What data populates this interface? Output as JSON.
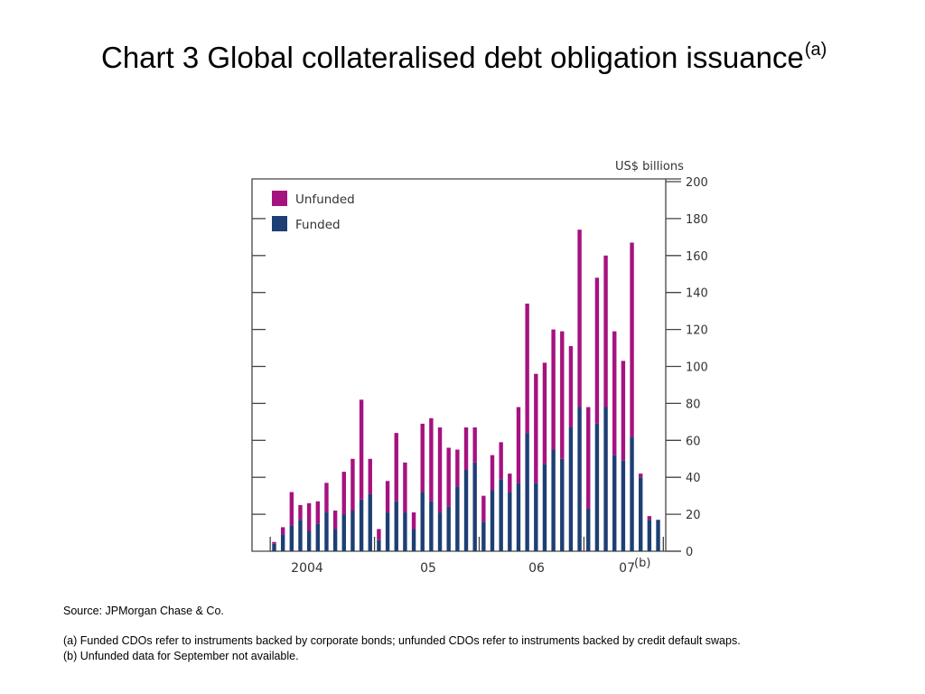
{
  "page": {
    "title_main": "Chart 3  Global collateralised debt obligation issuance",
    "title_sup": "(a)"
  },
  "notes": {
    "source": "Source:  JPMorgan Chase & Co.",
    "note_a": "(a) Funded CDOs refer to instruments backed by corporate bonds;  unfunded CDOs refer to instruments backed by credit default swaps.",
    "note_b": "(b) Unfunded data for September not available."
  },
  "colors": {
    "unfunded": "#A6127F",
    "funded": "#1D3F74",
    "frame": "#444444"
  },
  "chart_data": {
    "type": "bar",
    "stacked": true,
    "unit_label": "US$ billions",
    "ylim": [
      0,
      200
    ],
    "yticks": [
      0,
      20,
      40,
      60,
      80,
      100,
      120,
      140,
      160,
      180,
      200
    ],
    "xtick_labels": [
      "2004",
      "05",
      "06",
      "07"
    ],
    "xtick_suffix": "(b)",
    "legend": {
      "position": "top-left",
      "entries": [
        "Unfunded",
        "Funded"
      ]
    },
    "categories": [
      "2004-01",
      "2004-02",
      "2004-03",
      "2004-04",
      "2004-05",
      "2004-06",
      "2004-07",
      "2004-08",
      "2004-09",
      "2004-10",
      "2004-11",
      "2004-12",
      "2005-01",
      "2005-02",
      "2005-03",
      "2005-04",
      "2005-05",
      "2005-06",
      "2005-07",
      "2005-08",
      "2005-09",
      "2005-10",
      "2005-11",
      "2005-12",
      "2006-01",
      "2006-02",
      "2006-03",
      "2006-04",
      "2006-05",
      "2006-06",
      "2006-07",
      "2006-08",
      "2006-09",
      "2006-10",
      "2006-11",
      "2006-12",
      "2007-01",
      "2007-02",
      "2007-03",
      "2007-04",
      "2007-05",
      "2007-06",
      "2007-07",
      "2007-08",
      "2007-09"
    ],
    "series": [
      {
        "name": "Funded",
        "values": [
          4,
          9,
          14,
          17,
          11,
          15,
          21,
          12,
          20,
          22,
          28,
          31,
          6,
          21,
          27,
          21,
          12,
          32,
          27,
          21,
          24,
          35,
          44,
          48,
          16,
          33,
          39,
          32,
          37,
          64,
          37,
          47,
          55,
          50,
          67,
          78,
          23,
          69,
          78,
          52,
          49,
          62,
          40,
          17,
          17
        ]
      },
      {
        "name": "Unfunded",
        "values": [
          1,
          4,
          18,
          8,
          15,
          12,
          16,
          10,
          23,
          28,
          54,
          19,
          6,
          17,
          37,
          27,
          9,
          37,
          45,
          46,
          32,
          20,
          23,
          19,
          14,
          19,
          20,
          10,
          41,
          70,
          59,
          55,
          65,
          69,
          44,
          96,
          55,
          79,
          82,
          67,
          54,
          105,
          2,
          2,
          0
        ]
      }
    ]
  }
}
